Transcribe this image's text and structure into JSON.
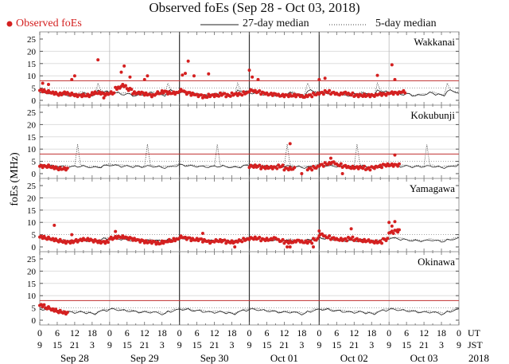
{
  "chart_data": {
    "type": "scatter",
    "title": "Observed foEs (Sep 28 - Oct 03, 2018)",
    "ylabel": "foEs (MHz)",
    "ylim": [
      0,
      25
    ],
    "yticks": [
      0,
      5,
      10,
      15,
      20,
      25
    ],
    "x_unit": "hours since Sep 28 00 UT",
    "xlim": [
      0,
      144
    ],
    "legend": {
      "observed": "Observed foEs",
      "median27": "27-day median",
      "median5": "5-day median",
      "placement": "top"
    },
    "colors": {
      "observed": "#d42020",
      "threshold": "#c03030",
      "median": "#222222",
      "grid": "#cccccc"
    },
    "x_axis": {
      "ut_label": "UT",
      "jst_label": "JST",
      "ut_ticks": [
        "0",
        "6",
        "12",
        "18",
        "0",
        "6",
        "12",
        "18",
        "0",
        "6",
        "12",
        "18",
        "0",
        "6",
        "12",
        "18",
        "0",
        "6",
        "12",
        "18",
        "0",
        "6",
        "12",
        "18",
        "0"
      ],
      "jst_ticks": [
        "9",
        "15",
        "21",
        "3",
        "9",
        "15",
        "21",
        "3",
        "9",
        "15",
        "21",
        "3",
        "9",
        "15",
        "21",
        "3",
        "9",
        "15",
        "21",
        "3",
        "9",
        "15",
        "21",
        "3",
        "9"
      ],
      "dates": [
        "Sep 28",
        "Sep 29",
        "Sep 30",
        "Oct 01",
        "Oct 02",
        "Oct 03"
      ],
      "year": "2018"
    },
    "step_hours": 2,
    "panels": [
      {
        "station": "Wakkanai",
        "threshold": 8,
        "median27_profile": [
          3,
          3,
          2.5,
          2.5,
          2,
          2,
          2.5,
          3,
          2.5,
          2,
          4,
          3.5
        ],
        "median5_spike": [
          20,
          7
        ],
        "observed": [
          4,
          3.5,
          3,
          2.5,
          3,
          2.5,
          2,
          2,
          2,
          3,
          3,
          2.5,
          3,
          5,
          6,
          4.5,
          3,
          3,
          2.5,
          2,
          3,
          3.5,
          3,
          3,
          4,
          3,
          2.5,
          2,
          1.5,
          2,
          2,
          2.5,
          2,
          2.5,
          2.5,
          3,
          4,
          3.5,
          3,
          2.5,
          2.5,
          2,
          2,
          2,
          2,
          1.5,
          2,
          2.5,
          3,
          3.5,
          3,
          2.5,
          3,
          2.5,
          2,
          2,
          2,
          2,
          2.5,
          2.5,
          3,
          3,
          3.5,
          null,
          null,
          null,
          null,
          null,
          null,
          null,
          null,
          null
        ],
        "outliers": [
          [
            1,
            7
          ],
          [
            3,
            6.5
          ],
          [
            11,
            8.5
          ],
          [
            12,
            10
          ],
          [
            20,
            16.5
          ],
          [
            22,
            1
          ],
          [
            28,
            11.5
          ],
          [
            29,
            14
          ],
          [
            31,
            9.5
          ],
          [
            36,
            8.5
          ],
          [
            37,
            10
          ],
          [
            50,
            11
          ],
          [
            49,
            10.3
          ],
          [
            51,
            16
          ],
          [
            53,
            10
          ],
          [
            58,
            10.8
          ],
          [
            72,
            12.3
          ],
          [
            73,
            9.5
          ],
          [
            75,
            8.5
          ],
          [
            96,
            8.5
          ],
          [
            98,
            9
          ],
          [
            116,
            10.2
          ],
          [
            121,
            14.5
          ],
          [
            122,
            8.5
          ]
        ]
      },
      {
        "station": "Kokubunji",
        "threshold": 8,
        "median27_profile": [
          3.5,
          3.3,
          3,
          3,
          2.8,
          2.8,
          3,
          3,
          2.8,
          2.5,
          2.7,
          3.2
        ],
        "median5_spike": [
          13,
          12
        ],
        "observed": [
          3,
          3,
          2.5,
          2,
          2,
          null,
          null,
          null,
          null,
          null,
          null,
          null,
          null,
          null,
          null,
          null,
          null,
          null,
          null,
          null,
          null,
          null,
          null,
          null,
          null,
          null,
          null,
          null,
          null,
          null,
          null,
          null,
          null,
          null,
          null,
          null,
          3,
          3,
          2.5,
          2.5,
          2.5,
          3,
          2,
          2,
          null,
          null,
          2,
          2.5,
          3.5,
          4,
          4.5,
          3.5,
          3,
          2.5,
          2.5,
          2.5,
          2,
          2.5,
          3,
          3.5,
          3.5,
          3.5,
          null,
          null,
          null,
          null,
          null,
          null,
          null,
          null,
          null,
          null
        ],
        "outliers": [
          [
            86,
            12.2
          ],
          [
            100,
            6.3
          ],
          [
            122,
            7.6
          ],
          [
            90,
            0
          ],
          [
            104,
            0
          ]
        ]
      },
      {
        "station": "Yamagawa",
        "threshold": null,
        "median27_profile": [
          3.5,
          3.5,
          3,
          2.8,
          2.5,
          2.5,
          2.5,
          2.8,
          2.5,
          2.3,
          2.8,
          3.3
        ],
        "median5_spike": null,
        "observed": [
          4,
          3.5,
          3,
          2.5,
          2,
          2,
          2.5,
          3,
          3,
          2.5,
          2,
          2,
          3.5,
          4,
          4,
          3.5,
          3,
          2.5,
          2,
          2,
          1.5,
          2,
          2.5,
          3,
          4,
          3.5,
          3,
          3,
          2.5,
          2,
          2.5,
          2.5,
          2,
          2,
          2.5,
          3,
          3.5,
          3.5,
          3,
          3,
          3.5,
          2.5,
          2,
          2,
          2.5,
          2,
          2,
          3,
          5,
          4,
          3.5,
          3,
          3,
          3.5,
          3,
          2.5,
          2.5,
          2,
          2,
          3,
          6,
          6.5,
          null,
          null,
          null,
          null,
          null,
          null,
          null,
          null,
          null,
          null
        ],
        "outliers": [
          [
            5,
            8.8
          ],
          [
            11,
            5
          ],
          [
            26,
            6.3
          ],
          [
            56,
            5.5
          ],
          [
            67,
            0
          ],
          [
            85,
            0
          ],
          [
            86,
            0
          ],
          [
            94,
            0
          ],
          [
            96,
            6.5
          ],
          [
            107,
            7.4
          ],
          [
            120,
            10
          ],
          [
            121,
            8.5
          ],
          [
            122,
            10.3
          ],
          [
            123,
            7
          ]
        ]
      },
      {
        "station": "Okinawa",
        "threshold": 8,
        "median27_profile": [
          4.5,
          4.3,
          4,
          3.8,
          3.5,
          3.3,
          3.2,
          3.3,
          3,
          2.5,
          3.5,
          4
        ],
        "median5_spike": null,
        "observed": [
          6,
          5,
          4.2,
          3.5,
          3,
          null,
          null,
          null,
          null,
          null,
          null,
          null,
          null,
          null,
          null,
          null,
          null,
          null,
          null,
          null,
          null,
          null,
          null,
          null,
          null,
          null,
          null,
          null,
          null,
          null,
          null,
          null,
          null,
          null,
          null,
          null,
          null,
          null,
          null,
          null,
          null,
          null,
          null,
          null,
          null,
          null,
          null,
          null,
          null,
          null,
          null,
          null,
          null,
          null,
          null,
          null,
          null,
          null,
          null,
          null,
          null,
          null,
          null,
          null,
          null,
          null,
          null,
          null,
          null,
          null,
          null,
          null
        ],
        "outliers": []
      }
    ]
  }
}
